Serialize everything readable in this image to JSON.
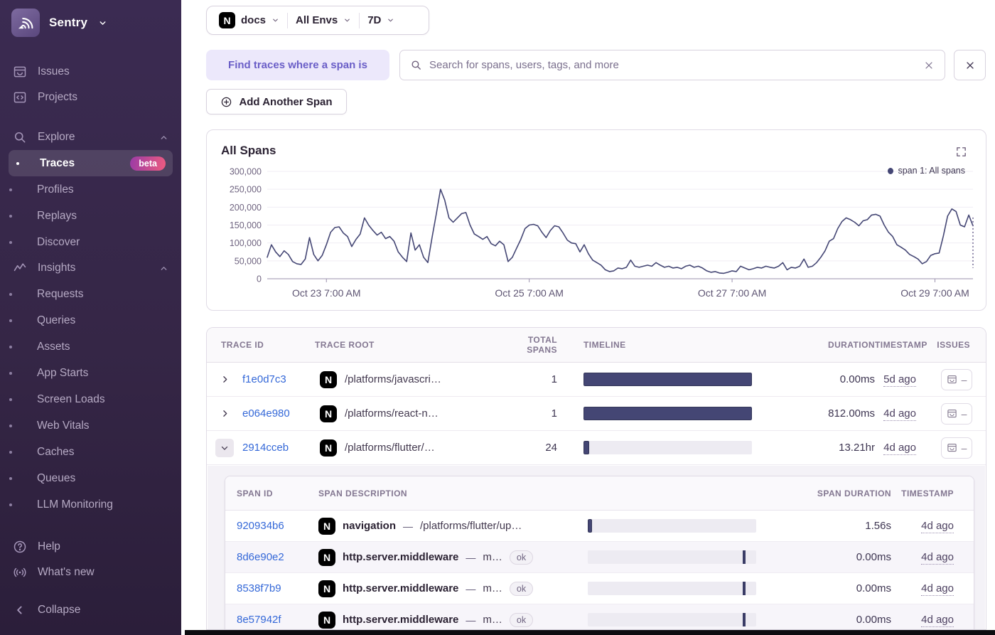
{
  "colors": {
    "sidebar_bg": "#362647",
    "accent_purple": "#6a5ec7",
    "link_blue": "#3468d8",
    "chart_line": "#444674",
    "bar_fill": "#444674",
    "beta_gradient": [
      "#9a3ba6",
      "#ee5b80"
    ]
  },
  "sidebar": {
    "brand": "Sentry",
    "items_top": [
      {
        "label": "Issues"
      },
      {
        "label": "Projects"
      }
    ],
    "explore_label": "Explore",
    "explore_children": [
      {
        "label": "Traces",
        "badge": "beta"
      },
      {
        "label": "Profiles"
      },
      {
        "label": "Replays"
      },
      {
        "label": "Discover"
      }
    ],
    "insights_label": "Insights",
    "insights_children": [
      {
        "label": "Requests"
      },
      {
        "label": "Queries"
      },
      {
        "label": "Assets"
      },
      {
        "label": "App Starts"
      },
      {
        "label": "Screen Loads"
      },
      {
        "label": "Web Vitals"
      },
      {
        "label": "Caches"
      },
      {
        "label": "Queues"
      },
      {
        "label": "LLM Monitoring"
      }
    ],
    "help": "Help",
    "whats_new": "What's new",
    "collapse": "Collapse"
  },
  "topbar": {
    "project": "docs",
    "environment": "All Envs",
    "period": "7D"
  },
  "filters": {
    "span_chip": "Find traces where a span is",
    "search_placeholder": "Search for spans, users, tags, and more",
    "add_span": "Add Another Span"
  },
  "chart_data": {
    "type": "line",
    "title": "All Spans",
    "legend": [
      "span 1: All spans"
    ],
    "legend_position": "top-right",
    "grid": true,
    "ylim": [
      0,
      300000
    ],
    "y_ticks": [
      0,
      50000,
      100000,
      150000,
      200000,
      250000,
      300000
    ],
    "x_range_hours": 168,
    "x_ticks": [
      {
        "label": "Oct 23 7:00 AM",
        "hour": 14
      },
      {
        "label": "Oct 25 7:00 AM",
        "hour": 62
      },
      {
        "label": "Oct 27 7:00 AM",
        "hour": 110
      },
      {
        "label": "Oct 29 7:00 AM",
        "hour": 158
      }
    ],
    "series": [
      {
        "name": "span 1: All spans",
        "values": [
          60000,
          95000,
          75000,
          62000,
          78000,
          68000,
          48000,
          42000,
          40000,
          55000,
          115000,
          68000,
          50000,
          65000,
          95000,
          130000,
          143000,
          145000,
          128000,
          118000,
          90000,
          110000,
          125000,
          170000,
          150000,
          135000,
          122000,
          130000,
          112000,
          118000,
          105000,
          75000,
          60000,
          48000,
          128000,
          80000,
          95000,
          60000,
          45000,
          115000,
          180000,
          250000,
          220000,
          170000,
          158000,
          170000,
          182000,
          185000,
          150000,
          125000,
          118000,
          110000,
          118000,
          98000,
          92000,
          105000,
          95000,
          48000,
          60000,
          85000,
          110000,
          140000,
          150000,
          152000,
          148000,
          130000,
          115000,
          135000,
          148000,
          145000,
          128000,
          108000,
          100000,
          98000,
          75000,
          95000,
          70000,
          52000,
          45000,
          38000,
          25000,
          20000,
          22000,
          30000,
          28000,
          32000,
          52000,
          35000,
          32000,
          35000,
          38000,
          35000,
          45000,
          38000,
          32000,
          35000,
          30000,
          32000,
          28000,
          35000,
          38000,
          32000,
          35000,
          30000,
          22000,
          18000,
          20000,
          16000,
          15000,
          18000,
          22000,
          20000,
          35000,
          30000,
          25000,
          28000,
          32000,
          30000,
          35000,
          32000,
          30000,
          35000,
          45000,
          25000,
          32000,
          30000,
          35000,
          55000,
          32000,
          35000,
          45000,
          60000,
          78000,
          105000,
          112000,
          140000,
          160000,
          170000,
          165000,
          158000,
          148000,
          162000,
          165000,
          178000,
          180000,
          175000,
          150000,
          130000,
          118000,
          95000,
          88000,
          80000,
          68000,
          62000,
          55000,
          42000,
          48000,
          65000,
          70000,
          72000,
          120000,
          175000,
          195000,
          188000,
          150000,
          145000,
          178000,
          148000
        ]
      }
    ]
  },
  "traces_table": {
    "headers": {
      "trace_id": "TRACE ID",
      "trace_root": "TRACE ROOT",
      "total_spans": "TOTAL SPANS",
      "timeline": "TIMELINE",
      "duration": "DURATION",
      "timestamp": "TIMESTAMP",
      "issues": "ISSUES"
    },
    "rows": [
      {
        "trace_id": "f1e0d7c3",
        "root": "/platforms/javascri…",
        "total_spans": "1",
        "timeline_fill_pct": 100,
        "duration": "0.00ms",
        "timestamp": "5d ago",
        "issues": "–",
        "expanded": false
      },
      {
        "trace_id": "e064e980",
        "root": "/platforms/react-n…",
        "total_spans": "1",
        "timeline_fill_pct": 100,
        "duration": "812.00ms",
        "timestamp": "4d ago",
        "issues": "–",
        "expanded": false
      },
      {
        "trace_id": "2914cceb",
        "root": "/platforms/flutter/…",
        "total_spans": "24",
        "timeline_fill_pct": 3.2,
        "duration": "13.21hr",
        "timestamp": "4d ago",
        "issues": "–",
        "expanded": true
      }
    ]
  },
  "spans_table": {
    "headers": {
      "span_id": "SPAN ID",
      "span_description": "SPAN DESCRIPTION",
      "span_duration": "SPAN DURATION",
      "timestamp": "TIMESTAMP"
    },
    "sep": "—",
    "rows": [
      {
        "span_id": "920934b6",
        "op": "navigation",
        "desc": "/platforms/flutter/up…",
        "status": "",
        "bar_fill_pct": 2.6,
        "duration": "1.56s",
        "timestamp": "4d ago"
      },
      {
        "span_id": "8d6e90e2",
        "op": "http.server.middleware",
        "desc": "m…",
        "status": "ok",
        "tick_left_pct": 92,
        "duration": "0.00ms",
        "timestamp": "4d ago"
      },
      {
        "span_id": "8538f7b9",
        "op": "http.server.middleware",
        "desc": "m…",
        "status": "ok",
        "tick_left_pct": 92,
        "duration": "0.00ms",
        "timestamp": "4d ago"
      },
      {
        "span_id": "8e57942f",
        "op": "http.server.middleware",
        "desc": "m…",
        "status": "ok",
        "tick_left_pct": 92,
        "duration": "0.00ms",
        "timestamp": "4d ago"
      }
    ]
  }
}
